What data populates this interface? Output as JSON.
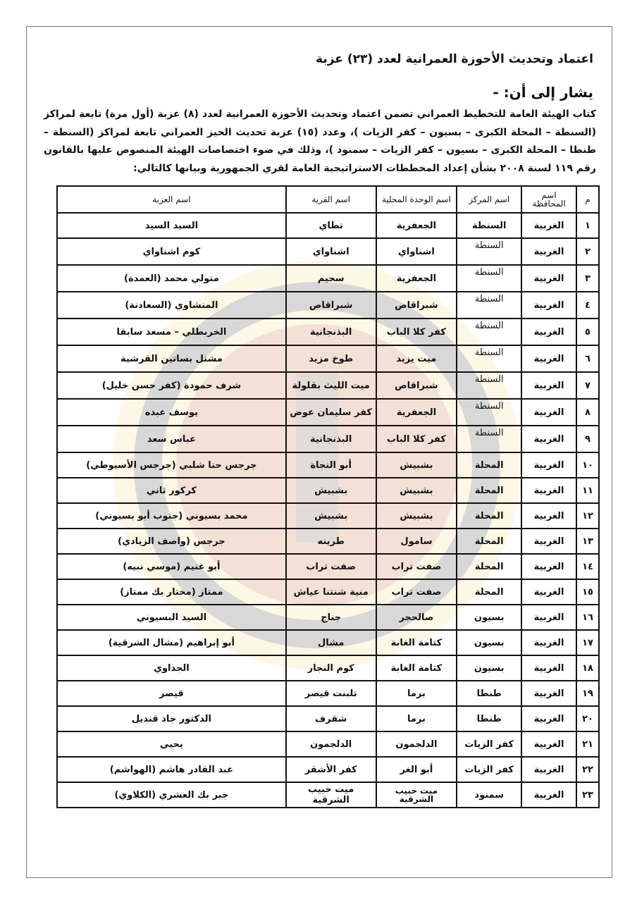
{
  "document": {
    "title": "اعتماد وتحديث الأحوزة العمرانية لعدد (٢٣) عزبة",
    "subtitle": "يشار إلى أن: -",
    "paragraph": "كتاب الهيئة العامة للتخطيط العمراني تضمن اعتماد وتحديث الأحوزة العمرانية لعدد (٨) عزبة (أول مرة) تابعة لمراكز (السنطة – المحلة الكبرى – بسيون – كفر الزيات )، وعدد (١٥) عزبة تحديث الحيز العمراني تابعة لمراكز (السنطة – طنطا – المحلة الكبرى – بسيون – كفر الزيات – سمنود )، وذلك في ضوء اختصاصات الهيئة المنصوص عليها بالقانون رقم ١١٩ لسنة ٢٠٠٨ بشأن إعداد المخططات الاستراتيجية العامة لقري الجمهورية وبيانها كالتالي:"
  },
  "table": {
    "headers": [
      "م",
      "اسم المحافظة",
      "اسم المركز",
      "اسم الوحدة المحلية",
      "اسم القرية",
      "اسم العزبة"
    ],
    "rows": [
      [
        "١",
        "الغربية",
        "السنطة",
        "الجعفرية",
        "تطاي",
        "السيد السيد"
      ],
      [
        "٢",
        "الغربية",
        "السنطة",
        "اشناواي",
        "اشناواي",
        "كوم اشناواي"
      ],
      [
        "٣",
        "الغربية",
        "السنطة",
        "الجعفرية",
        "سحيم",
        "متولي محمد (العمدة)"
      ],
      [
        "٤",
        "الغربية",
        "السنطة",
        "شبراقاص",
        "شبراقاص",
        "المنشاوي (السعادنة)"
      ],
      [
        "٥",
        "الغربية",
        "السنطة",
        "كفر كلا الباب",
        "البذنجانية",
        "الخربطلي – مسعد سابقا"
      ],
      [
        "٦",
        "الغربية",
        "السنطة",
        "ميت يزيد",
        "طوخ مزيد",
        "مشتل بساتين القرشية"
      ],
      [
        "٧",
        "الغربية",
        "السنطة",
        "شبراقاص",
        "ميت الليث بقلولة",
        "شرف حمودة (كفر حسن خليل)"
      ],
      [
        "٨",
        "الغربية",
        "السنطة",
        "الجعفرية",
        "كفر سليمان عوض",
        "يوسف عبده"
      ],
      [
        "٩",
        "الغربية",
        "السنطة",
        "كفر كلا الباب",
        "البذنجانية",
        "عباس سعد"
      ],
      [
        "١٠",
        "الغربية",
        "المحلة",
        "بشبيش",
        "أبو النجاة",
        "جرجس حنا شلبي (جرجس الأسيوطي)"
      ],
      [
        "١١",
        "الغربية",
        "المحلة",
        "بشبيش",
        "بشبيش",
        "كركور ثاني"
      ],
      [
        "١٢",
        "الغربية",
        "المحلة",
        "بشبيش",
        "بشبيش",
        "محمد بسيوني (جنوب أبو بسيوني)"
      ],
      [
        "١٣",
        "الغربية",
        "المحلة",
        "سامول",
        "طرينه",
        "جرجس (واصف الزيادي)"
      ],
      [
        "١٤",
        "الغربية",
        "المحلة",
        "صفت تراب",
        "صفت تراب",
        "أبو غنيم (موسي نبيه)"
      ],
      [
        "١٥",
        "الغربية",
        "المحلة",
        "صفت تراب",
        "منية شنتنا عياش",
        "ممتاز (مختار بك ممتاز)"
      ],
      [
        "١٦",
        "الغربية",
        "بسيون",
        "صالحجر",
        "جناج",
        "السيد البسيوني"
      ],
      [
        "١٧",
        "الغربية",
        "بسيون",
        "كتامة الغابة",
        "مشال",
        "أبو إبراهيم (مشال الشرقية)"
      ],
      [
        "١٨",
        "الغربية",
        "بسيون",
        "كتامة الغابة",
        "كوم النجار",
        "الجداوي"
      ],
      [
        "١٩",
        "الغربية",
        "طنطا",
        "برما",
        "تلبنت قيصر",
        "قيصر"
      ],
      [
        "٢٠",
        "الغربية",
        "طنطا",
        "برما",
        "شقرف",
        "الدكتور جاد قنديل"
      ],
      [
        "٢١",
        "الغربية",
        "كفر الزيات",
        "الدلجمون",
        "الدلجمون",
        "يحيي"
      ],
      [
        "٢٢",
        "الغربية",
        "كفر الزيات",
        "أبو الغر",
        "كفر الأشقر",
        "عبد القادر هاشم (الهواشم)"
      ],
      [
        "٢٣",
        "الغربية",
        "سمنود",
        "ميت حبيب الشرقية",
        "ميت حبيب الشرقية",
        "جبر بك العشري (الكلاوي)"
      ]
    ]
  },
  "colors": {
    "watermark_red": "#b03030",
    "watermark_yellow": "#f2c84b",
    "watermark_gray": "#777777"
  }
}
